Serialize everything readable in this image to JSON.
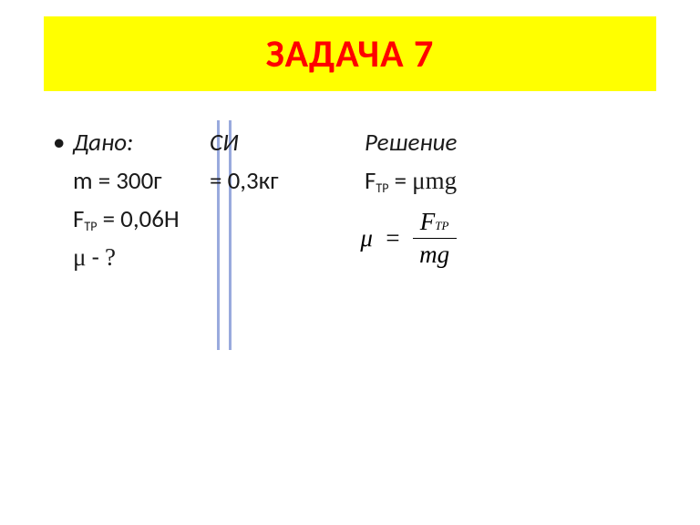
{
  "colors": {
    "titleBg": "#ffff00",
    "titleText": "#ff0000",
    "bodyText": "#1a1a1a",
    "separator": "#99aadd",
    "pageBg": "#ffffff",
    "formulaText": "#000000"
  },
  "fonts": {
    "body": "Calibri, Arial, sans-serif",
    "math": "Cambria Math, Times New Roman, serif",
    "titleSize": 42,
    "bodySize": 27,
    "subSize": 14
  },
  "title": "ЗАДАЧА  7",
  "bullet": "•",
  "columns": {
    "dano": "Дано:",
    "si": "СИ",
    "solution": "Решение"
  },
  "given": {
    "mass": {
      "var": "m",
      "eq": "=",
      "value": "300г"
    },
    "mass_si": {
      "eq": "=",
      "value": "0,3кг"
    },
    "friction": {
      "var": "F",
      "sub": "ТР",
      "eq": "=",
      "value": "0,06Н"
    },
    "find": {
      "var": "μ",
      "dash": "-",
      "q": "?"
    }
  },
  "solution": {
    "line1": {
      "var": "F",
      "sub": "ТР",
      "eq": "=",
      "rhs": "μmg"
    },
    "formula": {
      "lhs": "μ",
      "eq": "=",
      "numer_var": "F",
      "numer_sub": "ТР",
      "denom": "mg"
    }
  }
}
